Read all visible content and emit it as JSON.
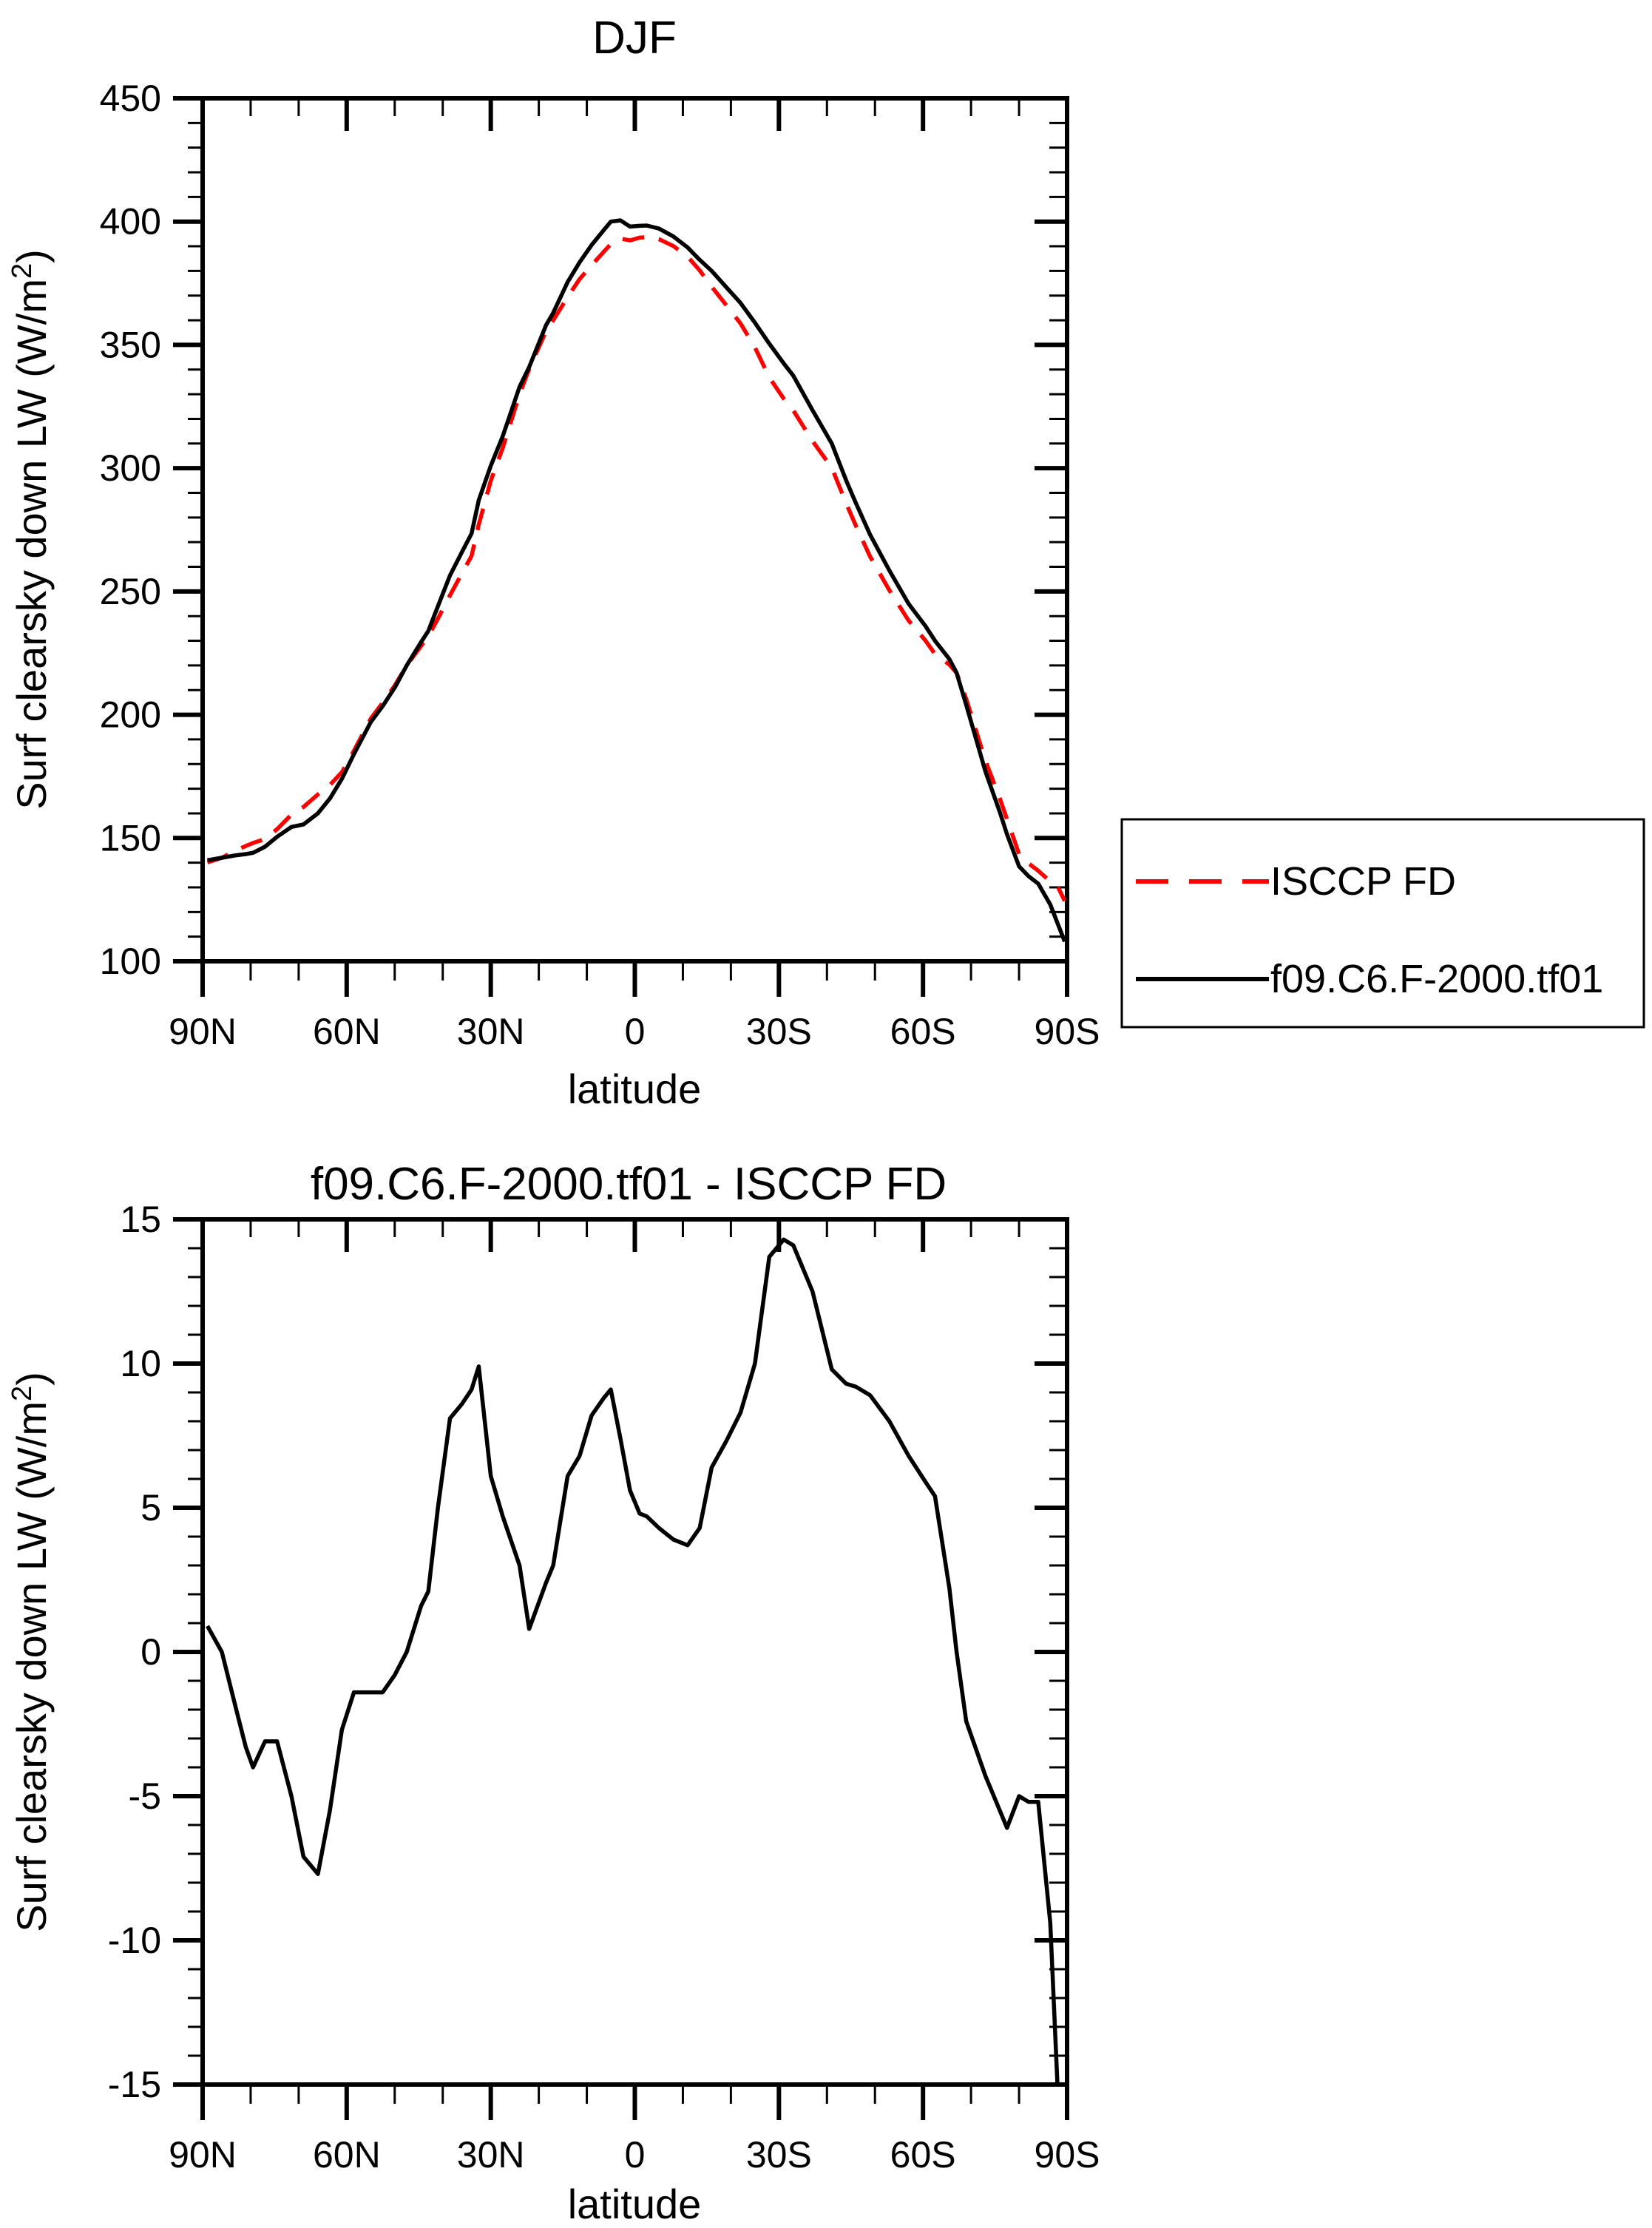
{
  "panel1": {
    "title": "DJF",
    "xlabel": "latitude",
    "ylabel_prefix": "Surf clearsky down LW (W/m",
    "ylabel_sup": "2",
    "ylabel_suffix": ")"
  },
  "panel2": {
    "title": "f09.C6.F-2000.tf01 - ISCCP FD",
    "xlabel": "latitude",
    "ylabel_prefix": "Surf clearsky down LW (W/m",
    "ylabel_sup": "2",
    "ylabel_suffix": ")"
  },
  "legend": {
    "entries": [
      {
        "label": "ISCCP FD",
        "color": "#ff0000",
        "dash": true
      },
      {
        "label": "f09.C6.F-2000.tf01",
        "color": "#000000",
        "dash": false
      }
    ]
  },
  "chart_data": [
    {
      "type": "line",
      "title": "DJF",
      "xlabel": "latitude",
      "ylabel": "Surf clearsky down LW (W/m2)",
      "ylim": [
        100,
        450
      ],
      "y_major": [
        100,
        150,
        200,
        250,
        300,
        350,
        400,
        450
      ],
      "y_minor_step": 10,
      "x_major": {
        "lats": [
          90,
          60,
          30,
          0,
          -30,
          -60,
          -90
        ],
        "labels": [
          "90N",
          "60N",
          "30N",
          "0",
          "30S",
          "60S",
          "90S"
        ]
      },
      "x_minor_step": 10,
      "x": [
        89,
        86,
        83,
        81,
        79.5,
        77,
        74.5,
        71.5,
        69,
        66,
        63.5,
        61,
        58.5,
        55,
        52.5,
        50,
        47.5,
        44.5,
        43,
        41,
        38.5,
        36,
        34,
        32.5,
        30,
        27.5,
        24,
        22,
        18.5,
        17,
        14,
        11.5,
        9,
        6.5,
        5,
        3,
        1,
        -1,
        -2.5,
        -5,
        -8,
        -11,
        -13.5,
        -16,
        -19,
        -22,
        -25,
        -28,
        -31,
        -33,
        -37,
        -41,
        -44,
        -46,
        -49,
        -53,
        -57,
        -60.5,
        -62.5,
        -65.5,
        -67,
        -69,
        -73,
        -76,
        -77.5,
        -80,
        -82,
        -84,
        -86.5,
        -88,
        -89.5
      ],
      "series": [
        {
          "name": "ISCCP FD",
          "color": "#ff0000",
          "dash": true,
          "values": [
            140.1,
            142,
            145,
            146.8,
            148,
            149.6,
            153.6,
            159.5,
            162.6,
            167.7,
            171.5,
            176.7,
            185.4,
            198.4,
            204.9,
            211.8,
            220,
            227.9,
            231.9,
            239,
            248.4,
            257.4,
            264.4,
            277.1,
            294.9,
            308.3,
            330,
            340.2,
            355.6,
            360,
            369.4,
            376.7,
            382.3,
            387.7,
            390.9,
            393.1,
            392.4,
            393.5,
            393.7,
            392.9,
            390.1,
            385.8,
            380.2,
            373.6,
            366.2,
            358.7,
            349,
            336.8,
            328.2,
            323.4,
            311,
            300.2,
            285.7,
            276.8,
            264.1,
            250.5,
            238.2,
            230.1,
            224.6,
            220.3,
            217,
            206.4,
            181.3,
            166,
            157.6,
            143.5,
            139.7,
            136.7,
            132.4,
            130.5,
            124.5
          ]
        },
        {
          "name": "f09.C6.F-2000.tf01",
          "color": "#000000",
          "dash": false,
          "values": [
            141,
            142,
            143,
            143.5,
            144,
            146.5,
            150.5,
            154.5,
            155.5,
            160,
            166,
            174,
            184,
            197,
            203.5,
            211,
            220,
            229.5,
            234,
            244,
            256.5,
            266,
            273.5,
            287,
            301,
            313,
            333,
            341,
            358,
            363,
            375.5,
            383.5,
            390.5,
            396.5,
            400,
            400.5,
            398,
            398.3,
            398.4,
            397.2,
            394,
            389.5,
            384.5,
            380,
            373.5,
            367,
            359,
            350.5,
            342.5,
            337.5,
            323.5,
            310,
            295,
            286,
            273,
            258.5,
            245,
            236,
            230,
            222.5,
            217,
            204,
            177,
            160.5,
            151.5,
            138.5,
            134.5,
            131.5,
            123,
            115.5,
            108
          ]
        }
      ],
      "legend_position": "outside-right"
    },
    {
      "type": "line",
      "title": "f09.C6.F-2000.tf01 - ISCCP FD",
      "xlabel": "latitude",
      "ylabel": "Surf clearsky down LW (W/m2)",
      "ylim": [
        -15,
        15
      ],
      "y_major": [
        -15,
        -10,
        -5,
        0,
        5,
        10,
        15
      ],
      "y_minor_step": 1,
      "x_major": {
        "lats": [
          90,
          60,
          30,
          0,
          -30,
          -60,
          -90
        ],
        "labels": [
          "90N",
          "60N",
          "30N",
          "0",
          "30S",
          "60S",
          "90S"
        ]
      },
      "x_minor_step": 10,
      "x": [
        89,
        86,
        83,
        81,
        79.5,
        77,
        74.5,
        71.5,
        69,
        66,
        63.5,
        61,
        58.5,
        55,
        52.5,
        50,
        47.5,
        44.5,
        43,
        41,
        38.5,
        36,
        34,
        32.5,
        30,
        27.5,
        24,
        22,
        18.5,
        17,
        14,
        11.5,
        9,
        6.5,
        5,
        3,
        1,
        -1,
        -2.5,
        -5,
        -8,
        -11,
        -13.5,
        -16,
        -19,
        -22,
        -25,
        -28,
        -31,
        -33,
        -37,
        -41,
        -44,
        -46,
        -49,
        -53,
        -57,
        -60.5,
        -62.5,
        -65.5,
        -67,
        -69,
        -73,
        -76,
        -77.5,
        -80,
        -82,
        -84,
        -86.5,
        -88,
        -89.5
      ],
      "series": [
        {
          "name": "f09.C6.F-2000.tf01 - ISCCP FD",
          "color": "#000000",
          "dash": false,
          "values": [
            0.9,
            0,
            -2,
            -3.3,
            -4,
            -3.1,
            -3.1,
            -5,
            -7.1,
            -7.7,
            -5.5,
            -2.7,
            -1.4,
            -1.4,
            -1.4,
            -0.8,
            0,
            1.6,
            2.1,
            5,
            8.1,
            8.6,
            9.1,
            9.9,
            6.1,
            4.7,
            3,
            0.8,
            2.4,
            3,
            6.1,
            6.8,
            8.2,
            8.8,
            9.1,
            7.4,
            5.6,
            4.8,
            4.7,
            4.3,
            3.9,
            3.7,
            4.3,
            6.4,
            7.3,
            8.3,
            10,
            13.7,
            14.3,
            14.1,
            12.5,
            9.8,
            9.3,
            9.2,
            8.9,
            8,
            6.8,
            5.9,
            5.4,
            2.2,
            0,
            -2.4,
            -4.3,
            -5.5,
            -6.1,
            -5,
            -5.2,
            -5.2,
            -9.4,
            -15,
            -16.5
          ]
        }
      ],
      "legend_position": "none"
    }
  ]
}
